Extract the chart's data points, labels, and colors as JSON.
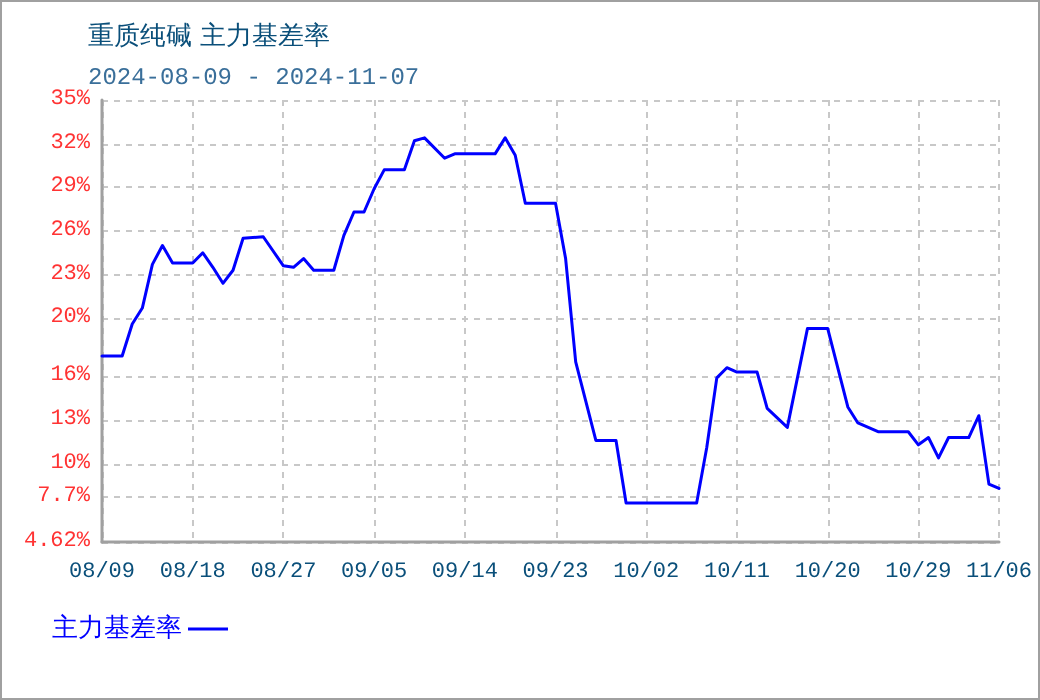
{
  "chart_data": {
    "type": "line",
    "title": "重质纯碱 主力基差率",
    "subtitle": "2024-08-09 - 2024-11-07",
    "x": [
      "2024-08-09",
      "2024-08-11",
      "2024-08-12",
      "2024-08-13",
      "2024-08-14",
      "2024-08-15",
      "2024-08-16",
      "2024-08-18",
      "2024-08-19",
      "2024-08-20",
      "2024-08-21",
      "2024-08-22",
      "2024-08-23",
      "2024-08-25",
      "2024-08-27",
      "2024-08-28",
      "2024-08-29",
      "2024-08-30",
      "2024-09-01",
      "2024-09-02",
      "2024-09-03",
      "2024-09-04",
      "2024-09-05",
      "2024-09-06",
      "2024-09-08",
      "2024-09-09",
      "2024-09-10",
      "2024-09-12",
      "2024-09-13",
      "2024-09-17",
      "2024-09-18",
      "2024-09-19",
      "2024-09-20",
      "2024-09-23",
      "2024-09-24",
      "2024-09-25",
      "2024-09-27",
      "2024-09-29",
      "2024-09-30",
      "2024-10-07",
      "2024-10-08",
      "2024-10-09",
      "2024-10-10",
      "2024-10-11",
      "2024-10-13",
      "2024-10-14",
      "2024-10-16",
      "2024-10-18",
      "2024-10-20",
      "2024-10-22",
      "2024-10-23",
      "2024-10-25",
      "2024-10-28",
      "2024-10-29",
      "2024-10-30",
      "2024-10-31",
      "2024-11-01",
      "2024-11-03",
      "2024-11-04",
      "2024-11-05",
      "2024-11-06"
    ],
    "series": [
      {
        "name": "主力基差率",
        "color": "#0000ff",
        "values": [
          17.4,
          17.4,
          19.6,
          20.7,
          23.7,
          25.0,
          23.8,
          23.8,
          24.5,
          23.5,
          22.4,
          23.3,
          25.5,
          25.6,
          23.6,
          23.5,
          24.1,
          23.3,
          23.3,
          25.7,
          27.3,
          27.3,
          28.9,
          30.2,
          30.2,
          32.2,
          32.4,
          31.0,
          31.3,
          31.3,
          32.4,
          31.2,
          27.9,
          27.9,
          24.1,
          17.0,
          11.6,
          11.6,
          7.3,
          7.3,
          11.1,
          15.9,
          16.6,
          16.3,
          16.3,
          13.8,
          12.5,
          19.3,
          19.3,
          13.9,
          12.8,
          12.2,
          12.2,
          11.3,
          11.8,
          10.4,
          11.8,
          11.8,
          13.3,
          8.6,
          8.3
        ]
      }
    ],
    "xlim": [
      "2024-08-09",
      "2024-11-06"
    ],
    "xticks": [
      {
        "value": "2024-08-09",
        "label": "08/09"
      },
      {
        "value": "2024-08-18",
        "label": "08/18"
      },
      {
        "value": "2024-08-27",
        "label": "08/27"
      },
      {
        "value": "2024-09-05",
        "label": "09/05"
      },
      {
        "value": "2024-09-14",
        "label": "09/14"
      },
      {
        "value": "2024-09-23",
        "label": "09/23"
      },
      {
        "value": "2024-10-02",
        "label": "10/02"
      },
      {
        "value": "2024-10-11",
        "label": "10/11"
      },
      {
        "value": "2024-10-20",
        "label": "10/20"
      },
      {
        "value": "2024-10-29",
        "label": "10/29"
      },
      {
        "value": "2024-11-06",
        "label": "11/06"
      }
    ],
    "ylim": [
      4.62,
      35
    ],
    "yticks": [
      {
        "value": 4.62,
        "label": "4.62%"
      },
      {
        "value": 7.7,
        "label": "7.7%"
      },
      {
        "value": 10,
        "label": "10%"
      },
      {
        "value": 13,
        "label": "13%"
      },
      {
        "value": 16,
        "label": "16%"
      },
      {
        "value": 20,
        "label": "20%"
      },
      {
        "value": 23,
        "label": "23%"
      },
      {
        "value": 26,
        "label": "26%"
      },
      {
        "value": 29,
        "label": "29%"
      },
      {
        "value": 32,
        "label": "32%"
      },
      {
        "value": 35,
        "label": "35%"
      }
    ],
    "grid": true,
    "legend": "bottom left",
    "marker": "none",
    "line_style": "solid"
  }
}
